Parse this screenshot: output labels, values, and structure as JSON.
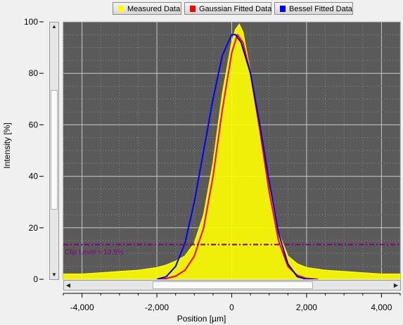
{
  "legend": {
    "items": [
      {
        "label": "Measured Data",
        "color": "#ffff00"
      },
      {
        "label": "Gaussian Fitted Data",
        "color": "#ff0000"
      },
      {
        "label": "Bessel Fitted Data",
        "color": "#0000ff"
      }
    ]
  },
  "chart_data": {
    "type": "line",
    "xlabel": "Position [µm]",
    "ylabel": "Intensity [%]",
    "xlim": [
      -4500,
      4500
    ],
    "ylim": [
      0,
      100
    ],
    "x_ticks": [
      -4000,
      -2000,
      0,
      2000,
      4000
    ],
    "x_tick_labels": [
      "-4,000",
      "-2,000",
      "0",
      "2,000",
      "4,000"
    ],
    "y_ticks": [
      0,
      20,
      40,
      60,
      80,
      100
    ],
    "y_tick_labels": [
      "0",
      "20",
      "40",
      "60",
      "80",
      "100"
    ],
    "grid": true,
    "background": "#5a5a5a",
    "legend_position": "top",
    "clip_level": {
      "value": 13.5,
      "label": "Clip Level = 13.5%",
      "color": "#800080"
    },
    "series": [
      {
        "name": "Measured Data",
        "color": "#ffff00",
        "x": [
          -4500,
          -4000,
          -3500,
          -3000,
          -2500,
          -2000,
          -1750,
          -1500,
          -1250,
          -1000,
          -750,
          -500,
          -250,
          0,
          100,
          200,
          300,
          400,
          500,
          750,
          1000,
          1250,
          1500,
          1750,
          2000,
          2500,
          3000,
          3500,
          4000,
          4500
        ],
        "values": [
          2,
          2,
          2.5,
          3,
          3.5,
          4.5,
          5.5,
          7,
          9,
          14,
          25,
          45,
          72,
          92,
          97,
          99,
          96,
          88,
          80,
          58,
          35,
          18,
          9,
          6,
          4.5,
          3.5,
          3,
          2.5,
          2,
          2
        ]
      },
      {
        "name": "Gaussian Fitted Data",
        "color": "#ff0000",
        "x": [
          -2000,
          -1750,
          -1500,
          -1250,
          -1000,
          -750,
          -500,
          -250,
          0,
          150,
          300,
          500,
          750,
          1000,
          1250,
          1500,
          1750,
          2000,
          2300
        ],
        "values": [
          0,
          0.3,
          1.2,
          3.5,
          9,
          20,
          40,
          66,
          88,
          95,
          92,
          80,
          58,
          34,
          15,
          5,
          1.5,
          0.3,
          0
        ]
      },
      {
        "name": "Bessel Fitted Data",
        "color": "#0000ff",
        "x": [
          -2000,
          -1750,
          -1500,
          -1250,
          -1000,
          -750,
          -500,
          -250,
          0,
          100,
          250,
          500,
          750,
          1000,
          1250,
          1500,
          1750,
          2000,
          2200
        ],
        "values": [
          0,
          1,
          5,
          14,
          30,
          50,
          70,
          87,
          95,
          95,
          92,
          80,
          60,
          38,
          18,
          6,
          1,
          0,
          0
        ]
      }
    ]
  }
}
